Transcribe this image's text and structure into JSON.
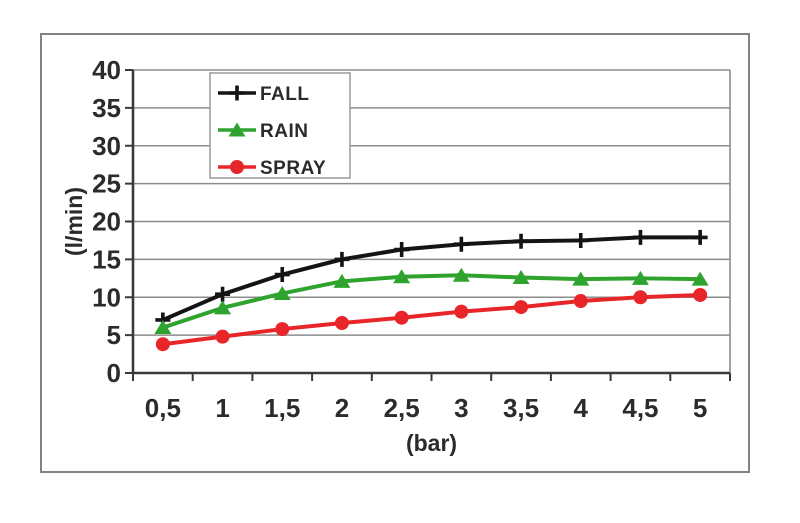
{
  "figure": {
    "background": "#ffffff",
    "frame_border_color": "#828282"
  },
  "chart_data": {
    "type": "line",
    "title": "",
    "xlabel": "(bar)",
    "ylabel": "(l/min)",
    "x": [
      0.5,
      1,
      1.5,
      2,
      2.5,
      3,
      3.5,
      4,
      4.5,
      5
    ],
    "x_tick_labels": [
      "0,5",
      "1",
      "1,5",
      "2",
      "2,5",
      "3",
      "3,5",
      "4",
      "4,5",
      "5"
    ],
    "ylim": [
      0,
      40
    ],
    "y_tick_step": 5,
    "grid": true,
    "legend_position": "top-left-inside",
    "axis_text_color": "#2b2b2b",
    "grid_color": "#8c8c8c",
    "axis_line_color": "#3a3a3a",
    "legend_border_color": "#9a9a9a",
    "series": [
      {
        "name": "FALL",
        "color": "#141414",
        "marker": "plus",
        "values": [
          7.0,
          10.4,
          13.0,
          15.0,
          16.3,
          17.0,
          17.4,
          17.5,
          17.9,
          17.9
        ]
      },
      {
        "name": "RAIN",
        "color": "#2ea32e",
        "marker": "triangle-up",
        "values": [
          6.0,
          8.6,
          10.5,
          12.1,
          12.7,
          12.9,
          12.6,
          12.4,
          12.5,
          12.4
        ]
      },
      {
        "name": "SPRAY",
        "color": "#e8262a",
        "marker": "circle",
        "values": [
          3.8,
          4.8,
          5.8,
          6.6,
          7.3,
          8.1,
          8.7,
          9.5,
          10.0,
          10.3
        ]
      }
    ]
  }
}
